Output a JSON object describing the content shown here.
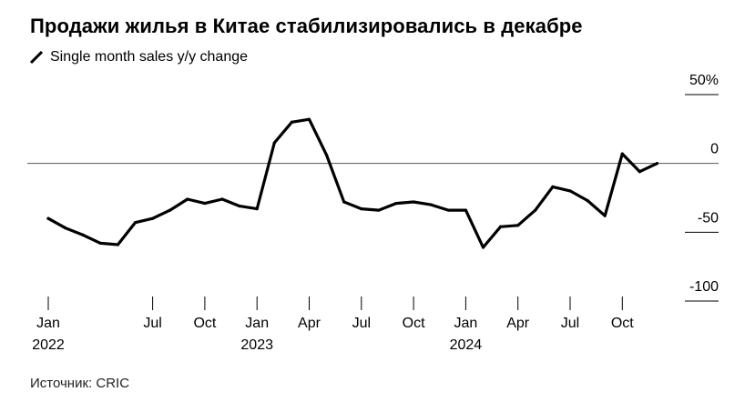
{
  "title": "Продажи жилья в Китае стабилизировались в декабре",
  "source": "Источник: CRIC",
  "chart_data": {
    "type": "line",
    "title": "Продажи жилья в Китае стабилизировались в декабре",
    "ylim": [
      -100,
      50
    ],
    "yticks": [
      {
        "value": 50,
        "label": "50%"
      },
      {
        "value": 0,
        "label": "0"
      },
      {
        "value": -50,
        "label": "-50"
      },
      {
        "value": -100,
        "label": "-100"
      }
    ],
    "xticks": [
      {
        "x": "2022-01",
        "label": "Jan",
        "year": "2022"
      },
      {
        "x": "2022-07",
        "label": "Jul",
        "year": ""
      },
      {
        "x": "2022-10",
        "label": "Oct",
        "year": ""
      },
      {
        "x": "2023-01",
        "label": "Jan",
        "year": "2023"
      },
      {
        "x": "2023-04",
        "label": "Apr",
        "year": ""
      },
      {
        "x": "2023-07",
        "label": "Jul",
        "year": ""
      },
      {
        "x": "2023-10",
        "label": "Oct",
        "year": ""
      },
      {
        "x": "2024-01",
        "label": "Jan",
        "year": "2024"
      },
      {
        "x": "2024-04",
        "label": "Apr",
        "year": ""
      },
      {
        "x": "2024-07",
        "label": "Jul",
        "year": ""
      },
      {
        "x": "2024-10",
        "label": "Oct",
        "year": ""
      }
    ],
    "grid": false,
    "zero_line": true,
    "line_color": "#000000",
    "series": [
      {
        "name": "Single month sales y/y change",
        "x": [
          "2022-01",
          "2022-02",
          "2022-03",
          "2022-04",
          "2022-05",
          "2022-06",
          "2022-07",
          "2022-08",
          "2022-09",
          "2022-10",
          "2022-11",
          "2022-12",
          "2023-01",
          "2023-02",
          "2023-03",
          "2023-04",
          "2023-05",
          "2023-06",
          "2023-07",
          "2023-08",
          "2023-09",
          "2023-10",
          "2023-11",
          "2023-12",
          "2024-01",
          "2024-02",
          "2024-03",
          "2024-04",
          "2024-05",
          "2024-06",
          "2024-07",
          "2024-08",
          "2024-09",
          "2024-10",
          "2024-11",
          "2024-12"
        ],
        "values": [
          -40,
          -47,
          -52,
          -58,
          -59,
          -43,
          -40,
          -34,
          -26,
          -29,
          -26,
          -31,
          -33,
          15,
          30,
          32,
          6,
          -28,
          -33,
          -34,
          -29,
          -28,
          -30,
          -34,
          -34,
          -61,
          -46,
          -45,
          -34,
          -17,
          -20,
          -27,
          -38,
          7,
          -6,
          0
        ]
      }
    ]
  }
}
